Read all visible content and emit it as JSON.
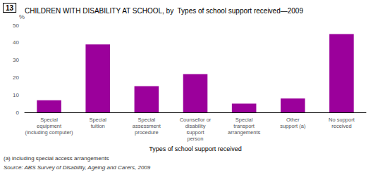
{
  "chart_data": {
    "type": "bar",
    "title": "CHILDREN WITH DISABILITY AT SCHOOL, by  Types of school support received—2009",
    "annotations": [
      "13",
      "(a) including special access arrangements",
      "Source: ABS Survey of Disability, Ageing and Carers, 2009"
    ],
    "categories": [
      "Special\nequipment\n(including computer)",
      "Special\ntuition",
      "Special\nassessment\nprocedure",
      "Counsellor or\ndisability\nsupport\nperson",
      "Special\ntransport\narrangements",
      "Other\nsupport (a)",
      "No support\nreceived"
    ],
    "values": [
      7,
      39,
      15,
      22,
      5,
      8,
      45
    ],
    "color": "#9B009B",
    "xlabel": "Types of school support received",
    "ylabel": "%",
    "ylim": [
      0,
      50
    ],
    "yticks": [
      0,
      10,
      20,
      30,
      40,
      50
    ],
    "grid": false
  }
}
